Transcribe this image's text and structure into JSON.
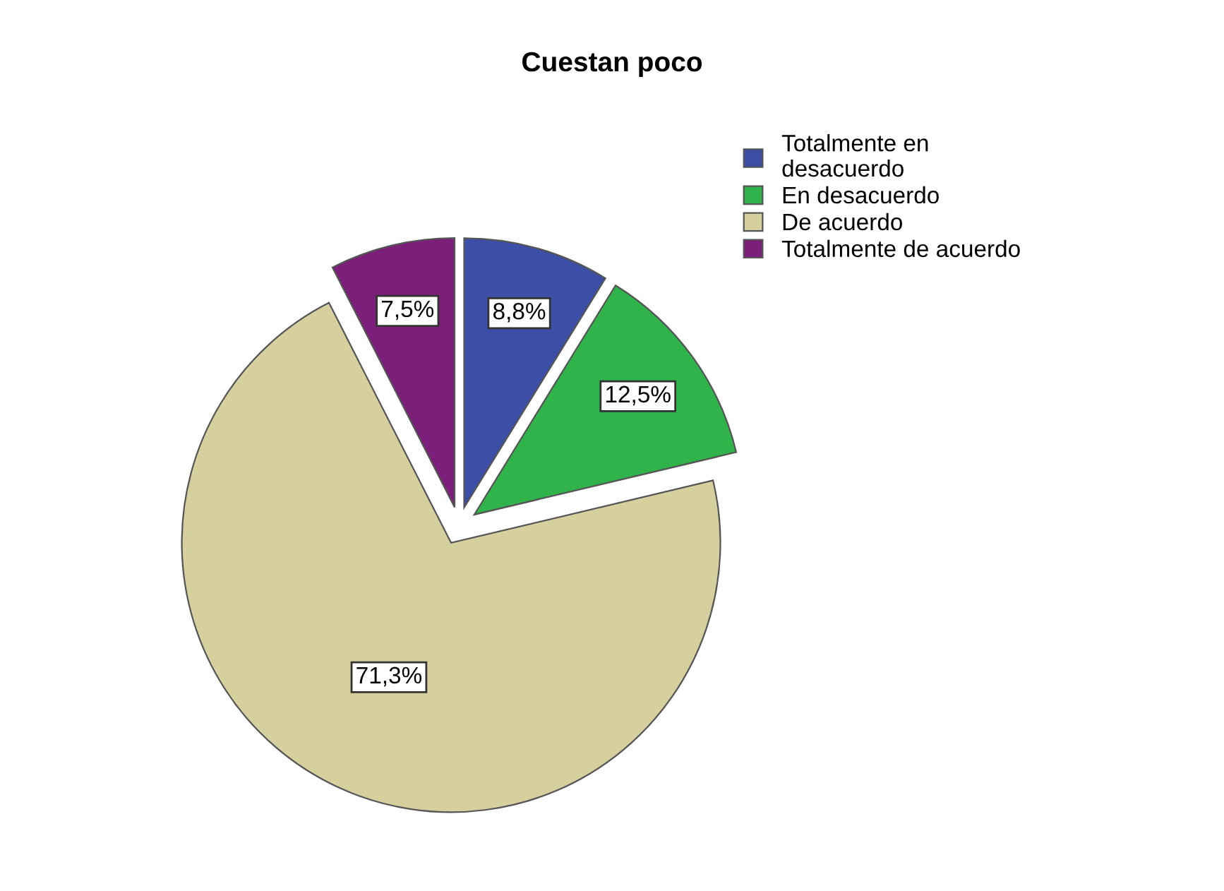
{
  "chart_data": {
    "type": "pie",
    "title": "Cuestan poco",
    "categories": [
      "Totalmente en\ndesacuerdo",
      "En desacuerdo",
      "De acuerdo",
      "Totalmente de acuerdo"
    ],
    "values": [
      8.8,
      12.5,
      71.3,
      7.5
    ],
    "value_labels": [
      "8,8%",
      "12,5%",
      "71,3%",
      "7,5%"
    ],
    "colors": [
      "#3d4ea6",
      "#2fb34a",
      "#d6cf9e",
      "#7b1f7a"
    ],
    "legend": "top right"
  }
}
